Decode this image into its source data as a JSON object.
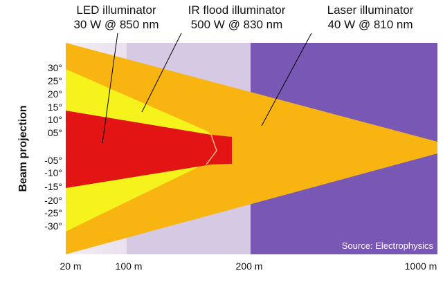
{
  "illuminators": [
    {
      "name": "LED illuminator",
      "spec": "30 W @ 850 nm"
    },
    {
      "name": "IR flood illuminator",
      "spec": "500 W @ 830 nm"
    },
    {
      "name": "Laser illuminator",
      "spec": "40 W @ 810 nm"
    }
  ],
  "y_axis": {
    "label": "Beam projection",
    "ticks": [
      "30°",
      "25°",
      "20°",
      "15°",
      "10°",
      "05°",
      "-05°",
      "-10°",
      "-15°",
      "-20°",
      "-25°",
      "-30°"
    ]
  },
  "x_axis": {
    "ticks": [
      "20 m",
      "100 m",
      "200 m",
      "1000 m"
    ]
  },
  "source": "Source: Electrophysics"
}
